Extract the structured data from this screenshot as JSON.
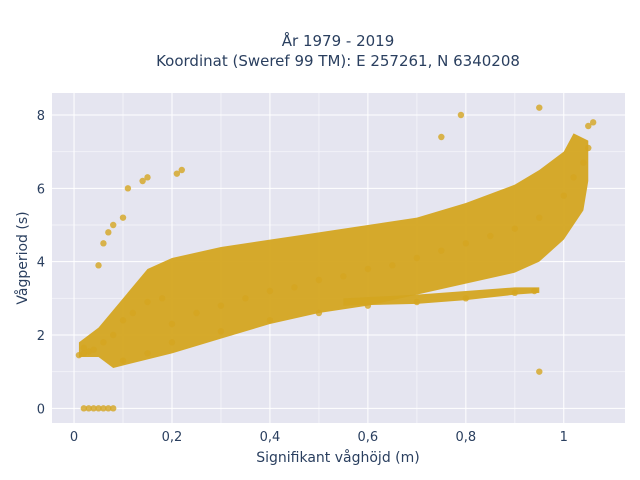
{
  "chart_data": {
    "type": "scatter",
    "title": "År 1979 - 2019",
    "subtitle": "Koordinat (Sweref 99 TM): E 257261, N 6340208",
    "xlabel": "Signifikant våghöjd (m)",
    "ylabel": "Vågperiod (s)",
    "xlim": [
      -0.045,
      1.125
    ],
    "ylim": [
      -0.4,
      8.6
    ],
    "x_ticks": [
      0,
      0.2,
      0.4,
      0.6,
      0.8,
      1
    ],
    "x_tick_labels": [
      "0",
      "0,2",
      "0,4",
      "0,6",
      "0,8",
      "1"
    ],
    "y_ticks": [
      0,
      2,
      4,
      6,
      8
    ],
    "y_tick_labels": [
      "0",
      "2",
      "4",
      "6",
      "8"
    ],
    "grid": true,
    "marker_color": "#D4A520",
    "background": "#E5E5F0",
    "series": [
      {
        "points": [
          [
            0.02,
            0.0
          ],
          [
            0.03,
            0.0
          ],
          [
            0.04,
            0.0
          ],
          [
            0.05,
            0.0
          ],
          [
            0.06,
            0.0
          ],
          [
            0.07,
            0.0
          ],
          [
            0.08,
            0.0
          ],
          [
            0.01,
            1.45
          ],
          [
            0.02,
            1.5
          ],
          [
            0.03,
            1.55
          ],
          [
            0.02,
            1.65
          ],
          [
            0.04,
            1.6
          ],
          [
            0.06,
            1.8
          ],
          [
            0.08,
            2.0
          ],
          [
            0.1,
            2.4
          ],
          [
            0.12,
            2.6
          ],
          [
            0.15,
            2.9
          ],
          [
            0.18,
            3.0
          ],
          [
            0.2,
            2.3
          ],
          [
            0.25,
            2.6
          ],
          [
            0.3,
            2.8
          ],
          [
            0.35,
            3.0
          ],
          [
            0.4,
            3.2
          ],
          [
            0.45,
            3.3
          ],
          [
            0.5,
            3.5
          ],
          [
            0.55,
            3.6
          ],
          [
            0.6,
            3.8
          ],
          [
            0.65,
            3.9
          ],
          [
            0.7,
            4.1
          ],
          [
            0.75,
            4.3
          ],
          [
            0.8,
            4.5
          ],
          [
            0.85,
            4.7
          ],
          [
            0.9,
            4.9
          ],
          [
            0.95,
            5.2
          ],
          [
            1.0,
            5.8
          ],
          [
            1.02,
            6.3
          ],
          [
            1.04,
            6.7
          ],
          [
            1.05,
            7.1
          ],
          [
            0.1,
            1.3
          ],
          [
            0.15,
            1.5
          ],
          [
            0.2,
            1.8
          ],
          [
            0.3,
            2.1
          ],
          [
            0.4,
            2.4
          ],
          [
            0.5,
            2.6
          ],
          [
            0.6,
            2.8
          ],
          [
            0.7,
            2.9
          ],
          [
            0.8,
            3.0
          ],
          [
            0.9,
            3.15
          ],
          [
            0.94,
            3.2
          ],
          [
            0.05,
            3.9
          ],
          [
            0.06,
            4.5
          ],
          [
            0.07,
            4.8
          ],
          [
            0.08,
            5.0
          ],
          [
            0.1,
            5.2
          ],
          [
            0.11,
            6.0
          ],
          [
            0.14,
            6.2
          ],
          [
            0.15,
            6.3
          ],
          [
            0.21,
            6.4
          ],
          [
            0.22,
            6.5
          ],
          [
            0.75,
            7.4
          ],
          [
            0.79,
            8.0
          ],
          [
            0.95,
            8.2
          ],
          [
            1.05,
            7.7
          ],
          [
            1.06,
            7.8
          ],
          [
            0.95,
            1.0
          ]
        ]
      }
    ]
  }
}
